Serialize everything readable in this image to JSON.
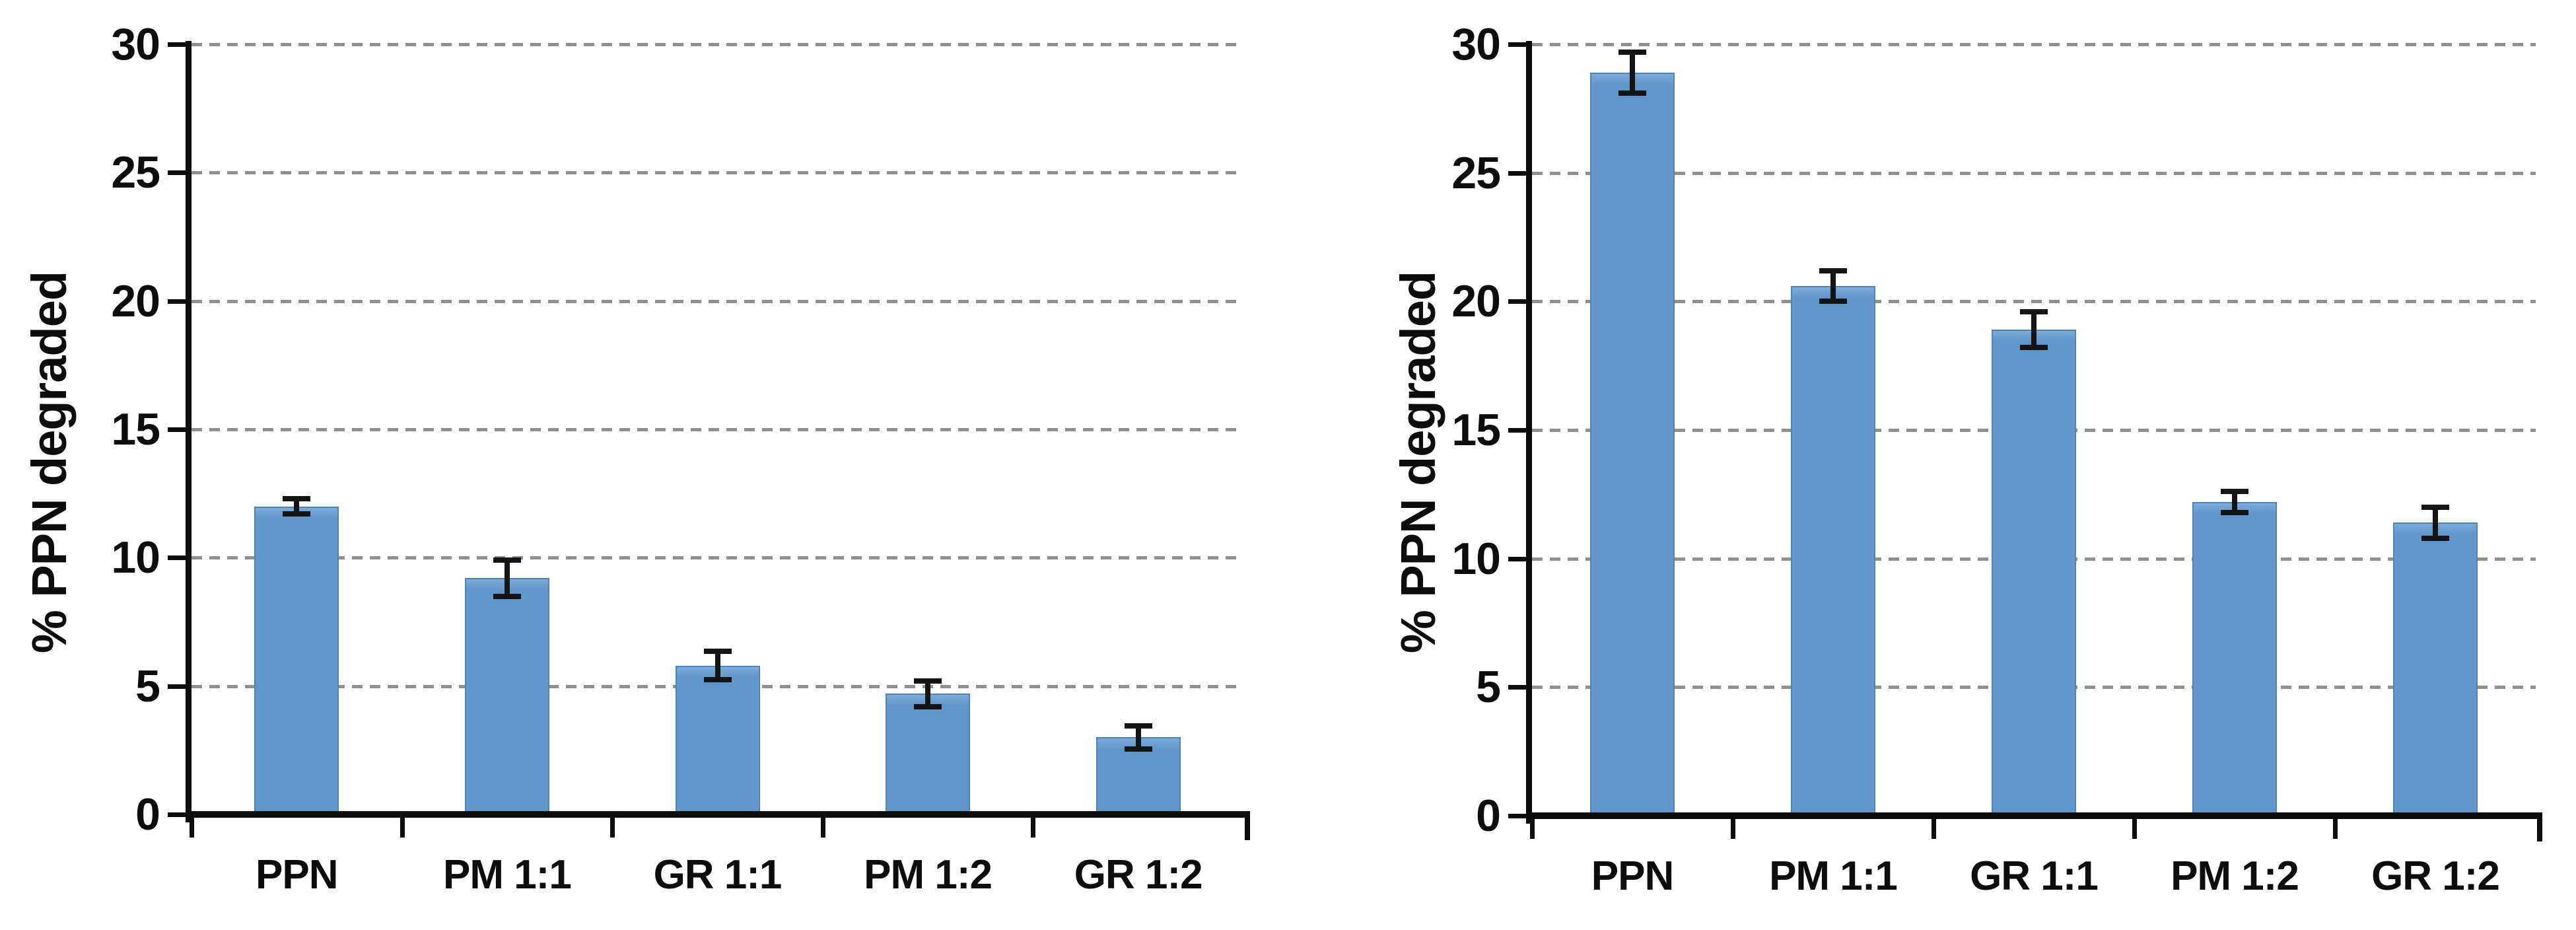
{
  "figure": {
    "background": "#ffffff",
    "bar_color": "#6096cb",
    "bar_edge_color": "#4f82b8",
    "gridline_color": "#8f8f8f",
    "axis_color": "#0d0d0d",
    "error_bar_color": "#141414"
  },
  "chart_data": [
    {
      "type": "bar",
      "title": "",
      "xlabel": "",
      "ylabel": "% PPN degraded",
      "categories": [
        "PPN",
        "PM 1:1",
        "GR 1:1",
        "PM 1:2",
        "GR 1:2"
      ],
      "values": [
        12.0,
        9.2,
        5.8,
        4.7,
        3.0
      ],
      "errors": [
        0.3,
        0.7,
        0.55,
        0.5,
        0.45
      ],
      "ylim": [
        0,
        30
      ],
      "yticks": [
        0,
        5,
        10,
        15,
        20,
        25,
        30
      ],
      "grid": "horizontal-dashed",
      "legend": "none"
    },
    {
      "type": "bar",
      "title": "",
      "xlabel": "",
      "ylabel": "% PPN degraded",
      "categories": [
        "PPN",
        "PM 1:1",
        "GR 1:1",
        "PM 1:2",
        "GR 1:2"
      ],
      "values": [
        28.9,
        20.6,
        18.9,
        12.2,
        11.4
      ],
      "errors": [
        0.8,
        0.6,
        0.7,
        0.4,
        0.6
      ],
      "ylim": [
        0,
        30
      ],
      "yticks": [
        0,
        5,
        10,
        15,
        20,
        25,
        30
      ],
      "grid": "horizontal-dashed",
      "legend": "none"
    }
  ]
}
